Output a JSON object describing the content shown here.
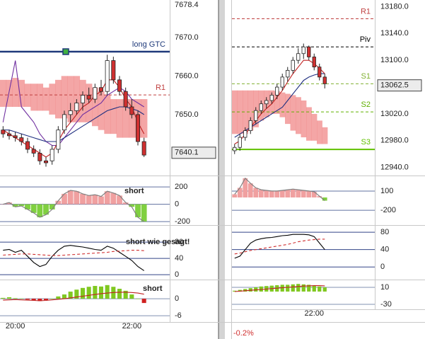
{
  "chart_data": [
    {
      "type": "candlestick",
      "ylim": [
        7634.2,
        7679.7
      ],
      "yticks": [
        {
          "value": 7678.4,
          "label": "7678.4"
        },
        {
          "value": 7670,
          "label": "7670.0"
        },
        {
          "value": 7660,
          "label": "7660.0"
        },
        {
          "value": 7650,
          "label": "7650.0"
        }
      ],
      "grid": false,
      "up_color": "#ffffff",
      "down_color": "#d03030",
      "candles": [
        [
          7646,
          7647,
          7644,
          7645
        ],
        [
          7645,
          7646,
          7643.5,
          7644.5
        ],
        [
          7644.5,
          7645.5,
          7643,
          7644
        ],
        [
          7644,
          7645,
          7642,
          7643
        ],
        [
          7643,
          7644,
          7640,
          7641
        ],
        [
          7641,
          7642,
          7639,
          7640
        ],
        [
          7640,
          7641,
          7637,
          7638
        ],
        [
          7638,
          7639,
          7636.5,
          7637.5
        ],
        [
          7638,
          7642,
          7637,
          7641
        ],
        [
          7641,
          7647,
          7640,
          7646
        ],
        [
          7646,
          7651,
          7645,
          7650
        ],
        [
          7650,
          7653,
          7648,
          7651
        ],
        [
          7651,
          7654,
          7650,
          7653
        ],
        [
          7653,
          7656,
          7651,
          7655
        ],
        [
          7655,
          7657,
          7653,
          7654
        ],
        [
          7654,
          7658,
          7653,
          7657
        ],
        [
          7657,
          7659,
          7655,
          7656
        ],
        [
          7656,
          7665.5,
          7655,
          7664
        ],
        [
          7664,
          7665,
          7658,
          7659
        ],
        [
          7659,
          7660,
          7655,
          7656
        ],
        [
          7656,
          7657,
          7651,
          7652
        ],
        [
          7652,
          7654,
          7649,
          7650
        ],
        [
          7650,
          7651,
          7642,
          7643
        ],
        [
          7643,
          7644,
          7639,
          7639.5
        ]
      ],
      "cloud": {
        "color": "#f08080",
        "upper": [
          7659,
          7659,
          7659.5,
          7659,
          7658,
          7658,
          7658,
          7657,
          7658,
          7659,
          7660,
          7660,
          7660,
          7659,
          7658,
          7657,
          7656,
          7655,
          7654,
          7654,
          7654,
          7654,
          7654,
          7654
        ],
        "lower": [
          7652,
          7652,
          7652,
          7652,
          7652,
          7651,
          7651,
          7651,
          7650,
          7649,
          7649,
          7648,
          7648,
          7648,
          7648,
          7647,
          7646,
          7645,
          7645,
          7644,
          7644,
          7644,
          7644,
          7644
        ]
      },
      "series": [
        {
          "color": "#7030a0",
          "values": [
            7648,
            7656,
            7664,
            7652,
            7650,
            7648,
            7645,
            7643,
            7642,
            7642,
            7644,
            7646,
            7648,
            7650,
            7651,
            7652,
            7653,
            7655,
            7656,
            7657,
            7656,
            7654,
            7653,
            7652
          ]
        },
        {
          "color": "#203080",
          "values": [
            7646,
            7646,
            7645.5,
            7645,
            7644.5,
            7644,
            7643.5,
            7643,
            7643,
            7643,
            7644,
            7645,
            7646,
            7647,
            7648,
            7649,
            7650,
            7651,
            7651.5,
            7652,
            7652,
            7651.5,
            7651,
            7650
          ]
        },
        {
          "color": "#c02020",
          "values": [
            7646,
            7645,
            7644,
            7643,
            7642,
            7641,
            7640,
            7639,
            7640,
            7643,
            7646,
            7648,
            7650,
            7652,
            7653,
            7655,
            7656,
            7659,
            7659,
            7657,
            7654,
            7652,
            7648,
            7645
          ]
        }
      ],
      "levels": [
        {
          "name": "long GTC",
          "value": 7666.3,
          "color": "#1f3a7a",
          "style": "thick"
        },
        {
          "name": "R1",
          "value": 7655.1,
          "color": "#c04040",
          "style": "dashed"
        }
      ],
      "current": {
        "value": 7640.1,
        "label": "7640.1"
      }
    },
    {
      "type": "oscillator",
      "ylim": [
        -240,
        315
      ],
      "yticks": [
        200,
        0,
        -200
      ],
      "grid": true,
      "grid_color": "#6070a0",
      "note": "short",
      "pos_color": "#f0a0a0",
      "neg_color": "#80d040",
      "line_color": "#808080",
      "values": [
        0,
        20,
        -30,
        -20,
        -60,
        -100,
        -150,
        -120,
        -60,
        40,
        120,
        160,
        150,
        120,
        100,
        110,
        90,
        150,
        130,
        100,
        20,
        -30,
        -150,
        -200
      ]
    },
    {
      "type": "line",
      "ylim": [
        -12,
        115
      ],
      "yticks": [
        80,
        40,
        0
      ],
      "grid": true,
      "grid_color": "#334488",
      "note": "short wie gesagt!",
      "series": [
        {
          "color": "#000000",
          "values": [
            60,
            62,
            55,
            60,
            45,
            30,
            20,
            25,
            45,
            60,
            70,
            72,
            70,
            68,
            65,
            62,
            60,
            70,
            65,
            55,
            45,
            35,
            20,
            10
          ]
        },
        {
          "color": "#d03030",
          "dashed": true,
          "values": [
            48,
            49,
            50,
            51,
            51,
            50,
            49,
            48,
            47,
            47,
            48,
            49,
            50,
            51,
            52,
            53,
            54,
            55,
            57,
            58,
            59,
            60,
            60,
            59
          ]
        }
      ]
    },
    {
      "type": "histogram",
      "ylim": [
        -8.2,
        6
      ],
      "yticks": [
        0,
        -6
      ],
      "grid": true,
      "grid_color": "#8090b0",
      "note": "short",
      "pos_color": "#80c820",
      "neg_color": "#d02020",
      "values": [
        0.3,
        0.5,
        0.2,
        0.1,
        -0.3,
        -0.6,
        -0.8,
        -0.5,
        0,
        0.8,
        1.5,
        2.5,
        3.2,
        3.8,
        4.2,
        4.5,
        4.3,
        4.8,
        4.2,
        3.5,
        2.8,
        1.5,
        0,
        -1.5
      ],
      "series": [
        {
          "color": "#c02020",
          "values": [
            -0.5,
            -0.4,
            -0.3,
            -0.4,
            -0.5,
            -0.6,
            -0.7,
            -0.6,
            -0.4,
            -0.2,
            0,
            0.3,
            0.6,
            0.9,
            1.2,
            1.5,
            1.8,
            2.0,
            2.2,
            2.3,
            2.3,
            2.2,
            2.0,
            1.6
          ]
        }
      ],
      "categories": [
        null,
        null,
        "20:00",
        null,
        null,
        null,
        null,
        null,
        null,
        null,
        null,
        null,
        null,
        null,
        null,
        null,
        null,
        null,
        null,
        null,
        null,
        "22:00",
        null,
        null
      ]
    },
    {
      "type": "candlestick",
      "ylim": [
        12928,
        13190
      ],
      "yticks": [
        {
          "value": 13180,
          "label": "13180.0"
        },
        {
          "value": 13140,
          "label": "13140.0"
        },
        {
          "value": 13100,
          "label": "13100.0"
        },
        {
          "value": 13020,
          "label": "13020.0"
        },
        {
          "value": 12980,
          "label": "12980.0"
        },
        {
          "value": 12940,
          "label": "12940.0"
        }
      ],
      "grid": false,
      "up_color": "#ffffff",
      "down_color": "#d03030",
      "change": "-0.2%",
      "candles": [
        [
          12965,
          12975,
          12960,
          12970
        ],
        [
          12970,
          12990,
          12965,
          12985
        ],
        [
          12985,
          13000,
          12980,
          12995
        ],
        [
          12995,
          13015,
          12990,
          13010
        ],
        [
          13010,
          13030,
          13005,
          13025
        ],
        [
          13025,
          13040,
          13020,
          13035
        ],
        [
          13035,
          13045,
          13028,
          13040
        ],
        [
          13040,
          13052,
          13035,
          13048
        ],
        [
          13048,
          13065,
          13042,
          13060
        ],
        [
          13060,
          13080,
          13055,
          13075
        ],
        [
          13075,
          13090,
          13068,
          13085
        ],
        [
          13085,
          13105,
          13080,
          13100
        ],
        [
          13100,
          13118,
          13095,
          13110
        ],
        [
          13110,
          13125,
          13102,
          13120
        ],
        [
          13120,
          13122,
          13100,
          13105
        ],
        [
          13105,
          13110,
          13085,
          13090
        ],
        [
          13090,
          13095,
          13070,
          13075
        ],
        [
          13075,
          13080,
          13058,
          13065
        ]
      ],
      "cloud": {
        "color": "#f08080",
        "upper": [
          13055,
          13055,
          13055,
          13055,
          13055,
          13055,
          13055,
          13055,
          13054,
          13052,
          13050,
          13048,
          13045,
          13040,
          13030,
          13020,
          13010,
          13000
        ],
        "lower": [
          12990,
          12990,
          12990,
          12995,
          13000,
          13010,
          13015,
          13020,
          13020,
          13015,
          13005,
          12995,
          12990,
          12985,
          12980,
          12980,
          12975,
          12975
        ]
      },
      "series": [
        {
          "color": "#203080",
          "values": [
            12985,
            12990,
            12995,
            13000,
            13005,
            13010,
            13015,
            13020,
            13025,
            13030,
            13040,
            13050,
            13060,
            13070,
            13075,
            13078,
            13080,
            13080
          ]
        },
        {
          "color": "#c02020",
          "values": [
            12975,
            12980,
            12990,
            13000,
            13010,
            13020,
            13028,
            13035,
            13045,
            13055,
            13068,
            13080,
            13090,
            13100,
            13100,
            13095,
            13088,
            13080
          ]
        }
      ],
      "levels": [
        {
          "name": "R1",
          "value": 13162,
          "color": "#c04040",
          "style": "dashed"
        },
        {
          "name": "Piv",
          "value": 13120,
          "color": "#000000",
          "style": "dashed"
        },
        {
          "name": "S1",
          "value": 13065,
          "color": "#80b030",
          "style": "dashed"
        },
        {
          "name": "S2",
          "value": 13023,
          "color": "#60b000",
          "style": "dashed"
        },
        {
          "name": "S3",
          "value": 12967,
          "color": "#60c000",
          "style": "solid"
        }
      ],
      "current": {
        "value": 13062.5,
        "label": "13062.5"
      }
    },
    {
      "type": "oscillator",
      "ylim": [
        -430,
        320
      ],
      "yticks": [
        100,
        -200
      ],
      "grid": true,
      "grid_color": "#6070a0",
      "pos_color": "#f0a0a0",
      "neg_color": "#80d040",
      "line_color": "#808080",
      "values": [
        50,
        150,
        300,
        220,
        150,
        120,
        110,
        100,
        100,
        110,
        120,
        130,
        120,
        110,
        100,
        90,
        20,
        -50
      ]
    },
    {
      "type": "line",
      "ylim": [
        -29,
        90
      ],
      "yticks": [
        80,
        40,
        0
      ],
      "grid": true,
      "grid_color": "#334488",
      "series": [
        {
          "color": "#000000",
          "values": [
            20,
            25,
            40,
            55,
            62,
            65,
            67,
            68,
            70,
            72,
            73,
            75,
            75,
            75,
            74,
            70,
            55,
            40
          ]
        },
        {
          "color": "#d03030",
          "dashed": true,
          "values": [
            30,
            32,
            35,
            38,
            40,
            42,
            44,
            46,
            48,
            50,
            52,
            55,
            58,
            60,
            62,
            63,
            64,
            64
          ]
        }
      ]
    },
    {
      "type": "histogram",
      "ylim": [
        -41.7,
        23.3
      ],
      "yticks": [
        10,
        -30
      ],
      "grid": true,
      "grid_color": "#8090b0",
      "pos_color": "#80c820",
      "neg_color": "#d02020",
      "values": [
        2,
        4,
        6,
        8,
        10,
        12,
        13,
        14,
        15,
        16,
        16,
        17,
        18,
        17,
        16,
        14,
        12,
        10
      ],
      "series": [
        {
          "color": "#c02020",
          "values": [
            0,
            1,
            2,
            3,
            4,
            5,
            6,
            7,
            8,
            9,
            10,
            11,
            12,
            13,
            13.5,
            14,
            14,
            13.5
          ]
        }
      ],
      "categories": [
        null,
        null,
        null,
        null,
        null,
        null,
        null,
        null,
        null,
        null,
        null,
        null,
        null,
        null,
        null,
        "22:00",
        null,
        null
      ]
    }
  ]
}
